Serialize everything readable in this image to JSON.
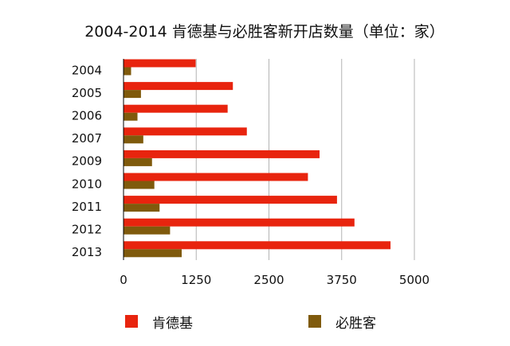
{
  "chart_data": {
    "type": "bar",
    "orientation": "horizontal",
    "title": "2004-2014 肯德基与必胜客新开店数量（单位：家）",
    "categories": [
      "2004",
      "2005",
      "2006",
      "2007",
      "2009",
      "2010",
      "2011",
      "2012",
      "2013"
    ],
    "series": [
      {
        "name": "肯德基",
        "color": "#e8240e",
        "values": [
          1240,
          1880,
          1790,
          2120,
          3370,
          3170,
          3670,
          3970,
          4590
        ]
      },
      {
        "name": "必胜客",
        "color": "#7f5a0c",
        "values": [
          130,
          300,
          240,
          340,
          490,
          530,
          620,
          800,
          1000
        ]
      }
    ],
    "xticks": [
      "0",
      "1250",
      "2500",
      "3750",
      "5000"
    ],
    "xlim": [
      0,
      5000
    ],
    "grid": "vertical",
    "legend": "bottom"
  }
}
